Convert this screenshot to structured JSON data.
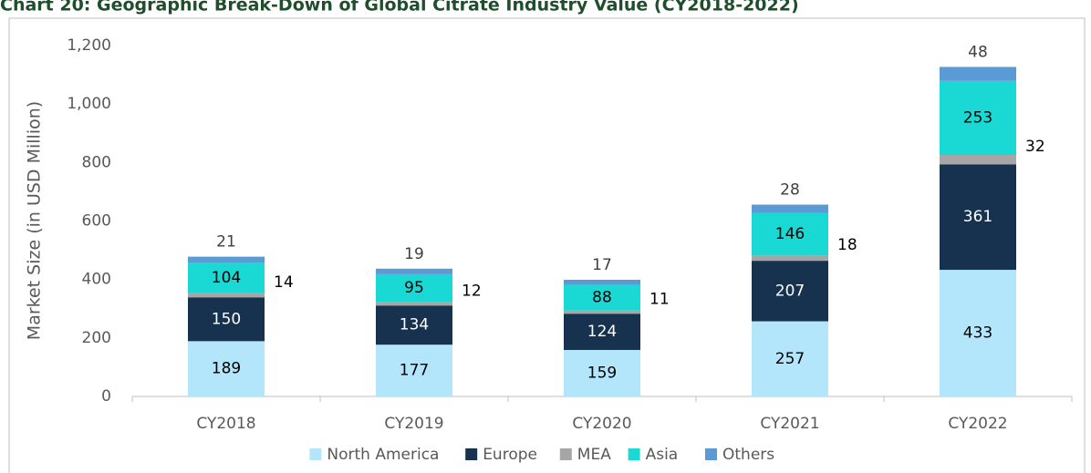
{
  "chart_data": {
    "type": "stacked_bar",
    "title": "Chart 20: Geographic Break-Down of Global Citrate Industry Value (CY2018-2022)",
    "y_label": "Market Size (in USD Million)",
    "categories": [
      "CY2018",
      "CY2019",
      "CY2020",
      "CY2021",
      "CY2022"
    ],
    "series": [
      {
        "name": "North America",
        "color": "#b3e5fb",
        "values": [
          189,
          177,
          159,
          257,
          433
        ]
      },
      {
        "name": "Europe",
        "color": "#16324f",
        "values": [
          150,
          134,
          124,
          207,
          361
        ]
      },
      {
        "name": "MEA",
        "color": "#a6a6a6",
        "values": [
          14,
          12,
          11,
          18,
          32
        ]
      },
      {
        "name": "Asia",
        "color": "#1ad8d3",
        "values": [
          104,
          95,
          88,
          146,
          253
        ]
      },
      {
        "name": "Others",
        "color": "#5b9bd5",
        "values": [
          21,
          19,
          17,
          28,
          48
        ]
      }
    ],
    "ylim": [
      0,
      1200
    ],
    "yticks": [
      0,
      200,
      400,
      600,
      800,
      {
        "value": 1000,
        "label": "1,000"
      },
      {
        "value": 1200,
        "label": "1,200"
      }
    ],
    "grid": false,
    "legend": "bottom"
  }
}
